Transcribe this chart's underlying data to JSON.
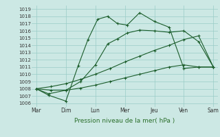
{
  "xlabel": "Pression niveau de la mer( hPa )",
  "x_labels": [
    "Mar",
    "Dim",
    "Lun",
    "Mer",
    "Jeu",
    "Ven",
    "Sam"
  ],
  "yticks": [
    1006,
    1007,
    1008,
    1009,
    1010,
    1011,
    1012,
    1013,
    1014,
    1015,
    1016,
    1017,
    1018,
    1019
  ],
  "ylim": [
    1005.5,
    1019.5
  ],
  "bg_color": "#cce8e4",
  "grid_color": "#99ccc6",
  "line_color": "#1a5c2a",
  "l1_x": [
    0,
    0.42,
    1.0,
    1.42,
    1.75,
    2.08,
    2.42,
    2.75,
    3.08,
    3.5,
    4.0,
    4.5,
    5.0,
    5.5,
    6.0
  ],
  "l1_y": [
    1008.0,
    1007.1,
    1006.3,
    1011.2,
    1014.8,
    1017.6,
    1018.0,
    1017.0,
    1016.8,
    1018.5,
    1017.3,
    1016.5,
    1010.8,
    1011.0,
    1011.0
  ],
  "l2_x": [
    0,
    0.42,
    1.0,
    1.5,
    2.0,
    2.42,
    2.75,
    3.08,
    3.5,
    4.0,
    4.5,
    5.0,
    5.5,
    6.0
  ],
  "l2_y": [
    1008.0,
    1007.3,
    1007.8,
    1009.0,
    1011.3,
    1014.2,
    1014.9,
    1015.7,
    1016.1,
    1016.0,
    1015.8,
    1016.0,
    1014.5,
    1011.0
  ],
  "l3_x": [
    0,
    0.5,
    1.0,
    1.5,
    2.0,
    2.5,
    3.0,
    3.5,
    4.0,
    4.5,
    5.0,
    5.5,
    6.0
  ],
  "l3_y": [
    1008.0,
    1008.3,
    1008.7,
    1009.3,
    1010.0,
    1010.8,
    1011.7,
    1012.5,
    1013.3,
    1014.0,
    1014.8,
    1015.3,
    1011.0
  ],
  "l4_x": [
    0,
    0.5,
    1.0,
    1.5,
    2.0,
    2.5,
    3.0,
    3.5,
    4.0,
    4.5,
    5.0,
    5.5,
    6.0
  ],
  "l4_y": [
    1008.0,
    1007.8,
    1007.8,
    1008.1,
    1008.5,
    1009.0,
    1009.5,
    1010.0,
    1010.5,
    1011.0,
    1011.3,
    1011.0,
    1011.0
  ]
}
